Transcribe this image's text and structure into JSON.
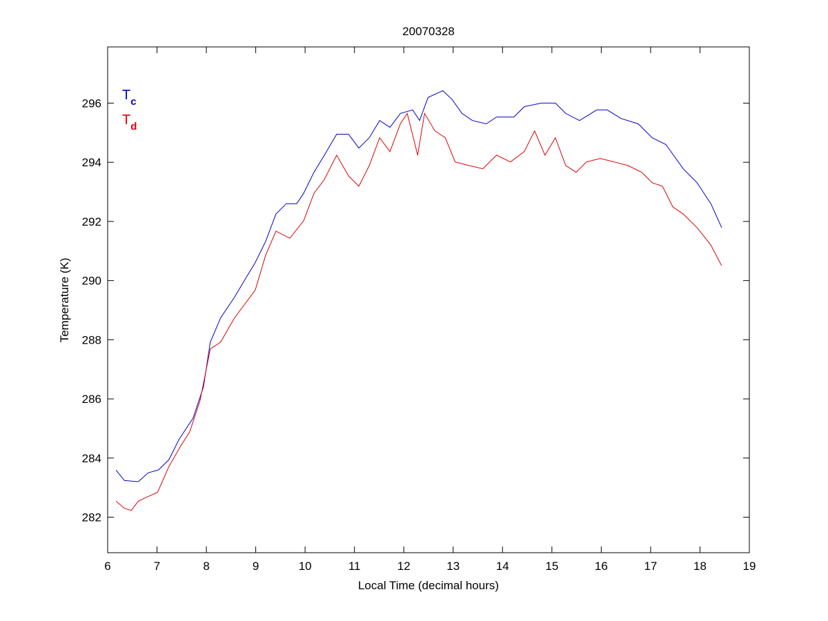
{
  "chart_data": {
    "type": "line",
    "title": "20070328",
    "xlabel": "Local Time (decimal hours)",
    "ylabel": "Temperature (K)",
    "xlim": [
      6,
      19
    ],
    "ylim": [
      280.8,
      297.9
    ],
    "xticks": [
      6,
      7,
      8,
      9,
      10,
      11,
      12,
      13,
      14,
      15,
      16,
      17,
      18,
      19
    ],
    "yticks": [
      282,
      284,
      286,
      288,
      290,
      292,
      294,
      296
    ],
    "grid": false,
    "legend": {
      "placement": "top-left",
      "entries": [
        {
          "base": "T",
          "sub": "c",
          "color": "#0000cc"
        },
        {
          "base": "T",
          "sub": "d",
          "color": "#dd0000"
        }
      ]
    },
    "series": [
      {
        "name": "Tc",
        "color": "#0000cc",
        "x": [
          6.17,
          6.34,
          6.62,
          6.82,
          7.03,
          7.24,
          7.45,
          7.73,
          7.94,
          8.08,
          8.29,
          8.57,
          8.78,
          8.99,
          9.2,
          9.41,
          9.62,
          9.83,
          9.97,
          10.18,
          10.39,
          10.64,
          10.88,
          11.09,
          11.3,
          11.51,
          11.72,
          11.93,
          12.18,
          12.32,
          12.49,
          12.79,
          12.98,
          13.18,
          13.39,
          13.67,
          13.88,
          14.23,
          14.44,
          14.79,
          15.07,
          15.28,
          15.56,
          15.91,
          16.12,
          16.4,
          16.75,
          17.03,
          17.31,
          17.66,
          17.94,
          18.22,
          18.44
        ],
        "y": [
          283.59,
          283.24,
          283.2,
          283.5,
          283.6,
          283.94,
          284.64,
          285.35,
          286.4,
          287.92,
          288.74,
          289.44,
          290.03,
          290.61,
          291.32,
          292.25,
          292.6,
          292.6,
          292.95,
          293.66,
          294.24,
          294.95,
          294.95,
          294.48,
          294.83,
          295.41,
          295.18,
          295.65,
          295.77,
          295.41,
          296.19,
          296.42,
          296.12,
          295.65,
          295.41,
          295.3,
          295.53,
          295.53,
          295.88,
          296.0,
          296.0,
          295.65,
          295.41,
          295.77,
          295.77,
          295.48,
          295.3,
          294.83,
          294.6,
          293.78,
          293.31,
          292.6,
          291.79
        ]
      },
      {
        "name": "Td",
        "color": "#dd0000",
        "x": [
          6.17,
          6.34,
          6.48,
          6.62,
          6.82,
          7.01,
          7.24,
          7.48,
          7.66,
          7.87,
          8.08,
          8.29,
          8.57,
          8.78,
          8.99,
          9.2,
          9.41,
          9.69,
          9.97,
          10.18,
          10.39,
          10.64,
          10.88,
          11.09,
          11.3,
          11.51,
          11.72,
          11.93,
          12.07,
          12.28,
          12.42,
          12.63,
          12.84,
          13.04,
          13.32,
          13.6,
          13.88,
          14.16,
          14.44,
          14.65,
          14.86,
          15.07,
          15.28,
          15.49,
          15.7,
          15.98,
          16.26,
          16.54,
          16.82,
          17.03,
          17.24,
          17.45,
          17.66,
          17.94,
          18.22,
          18.44
        ],
        "y": [
          282.54,
          282.3,
          282.23,
          282.54,
          282.7,
          282.84,
          283.71,
          284.41,
          284.88,
          285.93,
          287.69,
          287.92,
          288.74,
          289.21,
          289.68,
          290.85,
          291.67,
          291.43,
          292.02,
          292.95,
          293.42,
          294.24,
          293.54,
          293.19,
          293.89,
          294.83,
          294.36,
          295.3,
          295.65,
          294.24,
          295.65,
          295.06,
          294.83,
          294.01,
          293.89,
          293.78,
          294.24,
          294.01,
          294.36,
          295.06,
          294.24,
          294.83,
          293.89,
          293.66,
          294.01,
          294.13,
          294.01,
          293.89,
          293.66,
          293.31,
          293.19,
          292.49,
          292.25,
          291.79,
          291.2,
          290.5
        ]
      }
    ]
  }
}
